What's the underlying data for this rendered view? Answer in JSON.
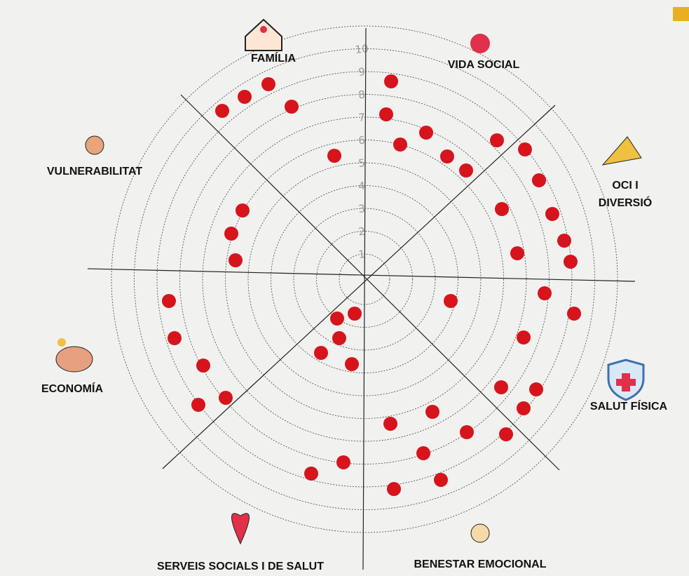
{
  "labels": {
    "familia": "FAMÍLIA",
    "vida_social": "VIDA SOCIAL",
    "vulnerabilitat": "VULNERABILITAT",
    "oci_1": "OCI I",
    "oci_2": "DIVERSIÓ",
    "economia": "ECONOMÍA",
    "salut_fisica": "SALUT FÍSICA",
    "serveis": "SERVEIS SOCIALS I DE SALUT",
    "benestar": "BENESTAR EMOCIONAL"
  },
  "ring_labels": [
    1,
    2,
    3,
    4,
    5,
    6,
    7,
    8,
    9,
    10
  ]
}
